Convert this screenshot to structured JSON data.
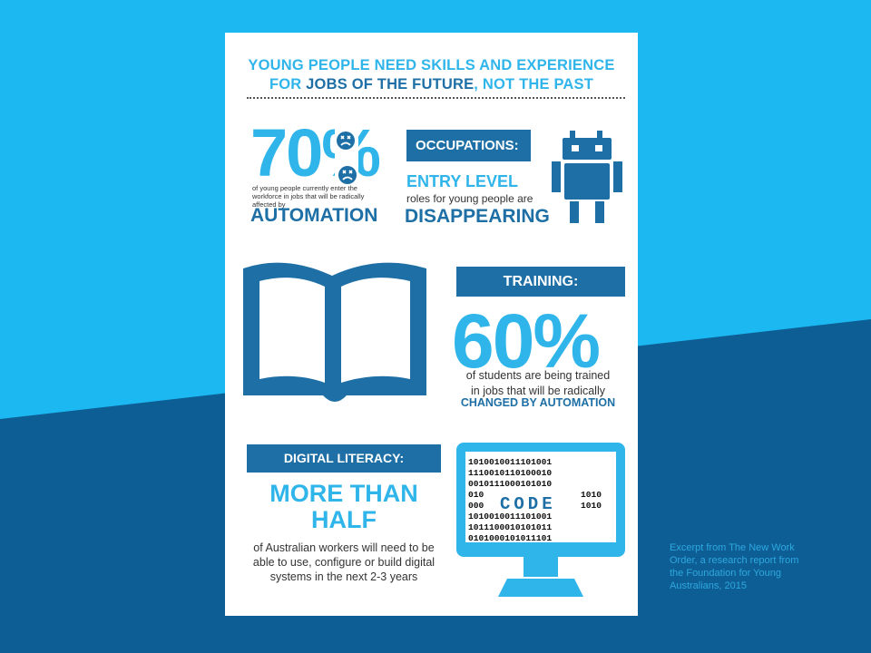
{
  "colors": {
    "top_background": "#1bb8f2",
    "bottom_background": "#0d5e94",
    "light_blue": "#2fb5ea",
    "dark_blue": "#1d6fa5"
  },
  "infographic": {
    "title_line1": "YOUNG PEOPLE NEED SKILLS AND EXPERIENCE",
    "title_line2_prefix": "FOR ",
    "title_line2_emphasis": "JOBS OF THE FUTURE",
    "title_line2_suffix": ", NOT THE PAST",
    "automation_block": {
      "percent": "70%",
      "description": "of young people currently enter the workforce in jobs that will be radically affected by",
      "highlight": "AUTOMATION",
      "icon": "sad-face-icon"
    },
    "occupations_block": {
      "heading": "OCCUPATIONS:",
      "entry_level": "ENTRY LEVEL",
      "roles_text": "roles for young people are",
      "highlight": "DISAPPEARING",
      "icon": "robot-icon"
    },
    "training_block": {
      "heading": "TRAINING:",
      "percent": "60%",
      "description_line1": "of students are being trained",
      "description_line2": "in jobs that will be radically",
      "highlight": "CHANGED BY AUTOMATION",
      "icon": "open-book-icon"
    },
    "digital_block": {
      "heading": "DIGITAL LITERACY:",
      "highlight_line1": "MORE THAN",
      "highlight_line2": "HALF",
      "description_line1": "of Australian workers will need to be",
      "description_line2": "able to use, configure or build digital",
      "description_line3": "systems in the next 2-3 years",
      "icon": "computer-monitor-icon",
      "screen_label": "CODE",
      "binary_rows": [
        "1010010011101001",
        "1110010110100010",
        "0010111000101010",
        "010",
        "000",
        "1010010011101001",
        "1011100010101011",
        "0101000101011101"
      ],
      "binary_side_rows": [
        "1010",
        "1010"
      ]
    }
  },
  "caption": "Excerpt from The New Work Order, a research report from the Foundation for Young Australians, 2015"
}
